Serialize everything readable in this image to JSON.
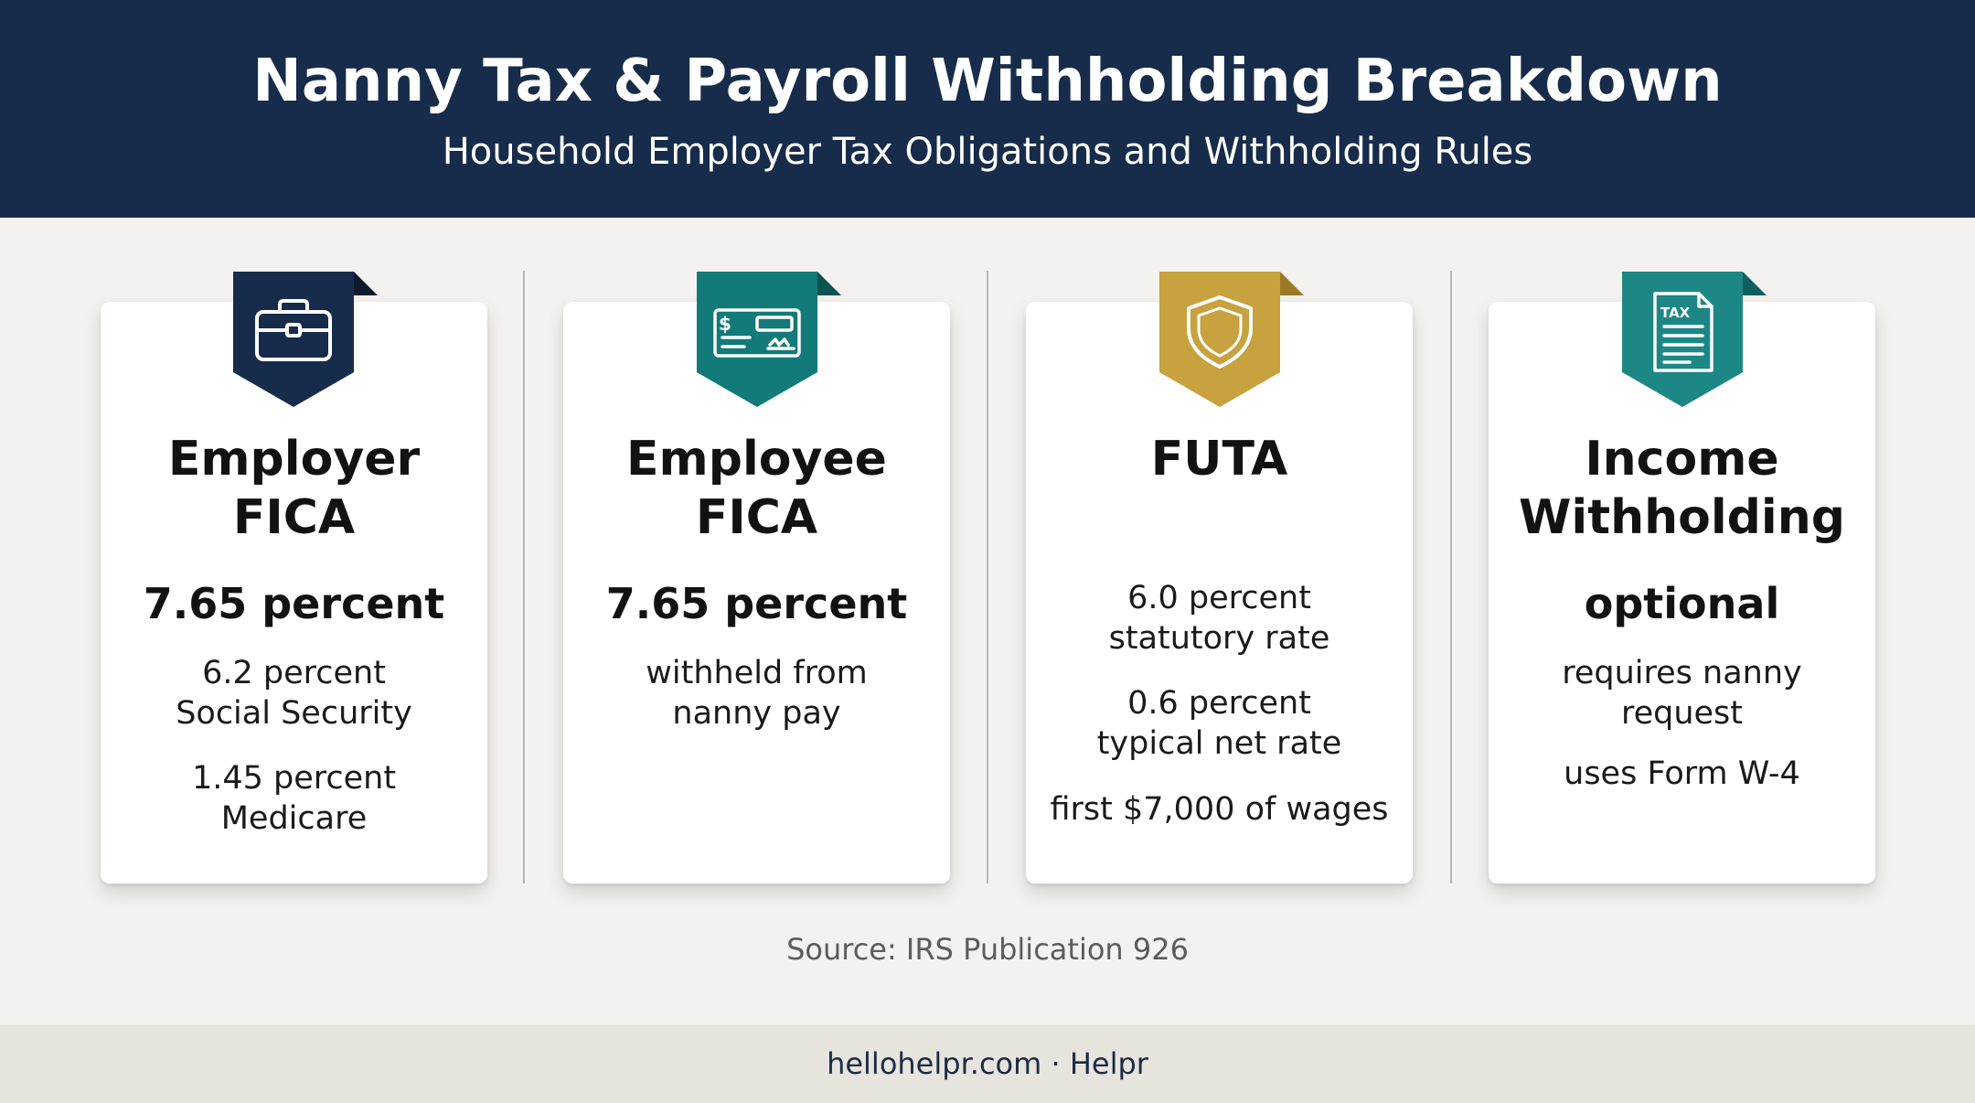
{
  "header": {
    "title": "Nanny Tax & Payroll Withholding Breakdown",
    "subtitle": "Household Employer Tax Obligations and Withholding Rules"
  },
  "cards": [
    {
      "icon": "briefcase-icon",
      "color": "#162c4a",
      "title_lines": [
        "Employer",
        "FICA"
      ],
      "rate": "7.65 percent",
      "details": [
        "6.2 percent",
        "Social Security",
        "1.45 percent",
        "Medicare"
      ]
    },
    {
      "icon": "check-icon",
      "color": "#127a78",
      "title_lines": [
        "Employee",
        "FICA"
      ],
      "rate": "7.65 percent",
      "details": [
        "withheld from",
        "nanny pay"
      ]
    },
    {
      "icon": "shield-icon",
      "color": "#c8a23f",
      "title_lines": [
        "FUTA"
      ],
      "rate": "",
      "details": [
        "6.0 percent",
        "statutory rate",
        "0.6 percent",
        "typical net rate",
        "first $7,000 of wages"
      ]
    },
    {
      "icon": "tax-document-icon",
      "color": "#1d8786",
      "icon_text": "TAX",
      "title_lines": [
        "Income",
        "Withholding"
      ],
      "rate": "optional",
      "details": [
        "requires nanny",
        "request",
        "uses Form W-4"
      ]
    }
  ],
  "source": "Source: IRS Publication 926",
  "footer": "hellohelpr.com · Helpr"
}
